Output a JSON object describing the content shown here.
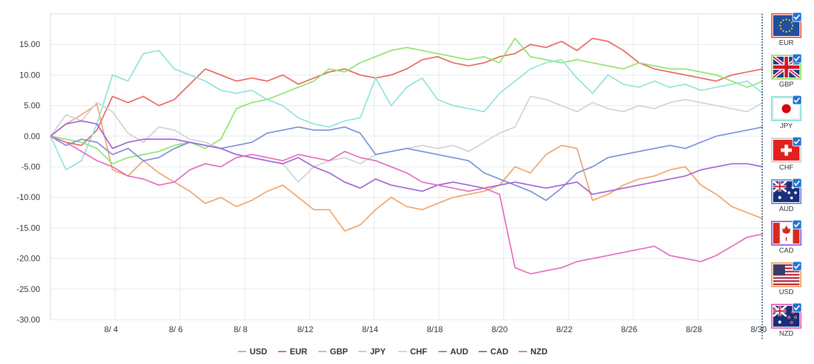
{
  "chart_data": {
    "type": "line",
    "y_ticks": [
      15,
      10,
      5,
      0,
      -5,
      -10,
      -15,
      -20,
      -25,
      -30
    ],
    "y_tick_labels": [
      "15.00",
      "10.00",
      "5.00",
      "0.00",
      "-5.00",
      "-10.00",
      "-15.00",
      "-20.00",
      "-25.00",
      "-30.00"
    ],
    "ylim": [
      -30,
      20
    ],
    "x_tick_labels": [
      "8/ 4",
      "8/ 6",
      "8/ 8",
      "8/12",
      "8/14",
      "8/18",
      "8/20",
      "8/22",
      "8/26",
      "8/28",
      "8/30"
    ],
    "grid": "vertical and horizontal",
    "legend_position": "bottom",
    "series": [
      {
        "name": "USD",
        "color": "#f0a56a",
        "values": [
          0,
          2.0,
          3.5,
          5.2,
          -5.5,
          -6.5,
          -4.0,
          -6.0,
          -7.5,
          -9.0,
          -11.0,
          -10.0,
          -11.5,
          -10.5,
          -9.0,
          -8.0,
          -10.0,
          -12.0,
          -12.0,
          -15.5,
          -14.5,
          -12.0,
          -10.0,
          -11.5,
          -12.0,
          -11.0,
          -10.0,
          -9.5,
          -9.0,
          -8.0,
          -5.0,
          -6.0,
          -3.0,
          -1.5,
          -2.0,
          -10.5,
          -9.5,
          -8.0,
          -7.0,
          -6.5,
          -5.5,
          -5.0,
          -8.0,
          -9.5,
          -11.5,
          -12.5,
          -13.5
        ]
      },
      {
        "name": "EUR",
        "color": "#e8685c",
        "values": [
          0,
          -1.0,
          -1.5,
          1.0,
          6.5,
          5.5,
          6.5,
          5.0,
          6.0,
          8.5,
          11.0,
          10.0,
          9.0,
          9.5,
          9.0,
          10.0,
          8.5,
          9.5,
          10.5,
          11.0,
          10.0,
          9.5,
          10.0,
          11.0,
          12.5,
          13.0,
          12.0,
          11.5,
          12.0,
          13.0,
          13.5,
          15.0,
          14.5,
          15.5,
          14.0,
          16.0,
          15.5,
          14.0,
          12.0,
          11.0,
          10.5,
          10.0,
          9.5,
          9.0,
          10.0,
          10.5,
          11.0
        ]
      },
      {
        "name": "GBP",
        "color": "#8fe46d",
        "values": [
          0,
          -0.5,
          -1.0,
          -2.0,
          -4.5,
          -3.5,
          -3.0,
          -2.5,
          -1.5,
          -1.0,
          -2.0,
          -0.5,
          4.5,
          5.5,
          6.0,
          7.0,
          8.0,
          9.0,
          11.0,
          10.5,
          12.0,
          13.0,
          14.0,
          14.5,
          14.0,
          13.5,
          13.0,
          12.5,
          13.0,
          12.0,
          16.0,
          13.0,
          12.5,
          12.0,
          12.5,
          12.0,
          11.5,
          11.0,
          12.0,
          11.5,
          11.0,
          11.0,
          10.5,
          10.0,
          9.0,
          8.0,
          9.0
        ]
      },
      {
        "name": "JPY",
        "color": "#8fe3db",
        "values": [
          0,
          -5.5,
          -4.0,
          2.0,
          10.0,
          9.0,
          13.5,
          14.0,
          11.0,
          10.0,
          9.0,
          7.5,
          7.0,
          7.5,
          6.0,
          5.0,
          3.0,
          2.0,
          1.5,
          2.5,
          3.0,
          9.5,
          5.0,
          8.0,
          9.5,
          6.0,
          5.0,
          4.5,
          4.0,
          7.0,
          9.0,
          11.0,
          12.0,
          12.5,
          9.5,
          7.0,
          10.0,
          8.5,
          8.0,
          9.0,
          8.0,
          8.5,
          7.5,
          8.0,
          8.5,
          9.0,
          7.0
        ]
      },
      {
        "name": "CHF",
        "color": "#d2d2d2",
        "values": [
          0,
          3.5,
          2.5,
          5.5,
          4.0,
          0.5,
          -1.0,
          1.5,
          1.0,
          -0.5,
          -1.0,
          -2.0,
          -3.0,
          -3.5,
          -4.0,
          -4.5,
          -7.5,
          -5.0,
          -4.0,
          -3.5,
          -4.5,
          -3.0,
          -2.5,
          -2.0,
          -1.5,
          -2.0,
          -1.5,
          -2.5,
          -1.0,
          0.5,
          1.5,
          6.5,
          6.0,
          5.0,
          4.0,
          5.5,
          4.5,
          4.0,
          5.0,
          4.5,
          5.5,
          6.0,
          5.5,
          5.0,
          4.5,
          4.0,
          5.5
        ]
      },
      {
        "name": "AUD",
        "color": "#7b8fd8",
        "values": [
          0,
          -1.5,
          -0.5,
          -1.0,
          -3.0,
          -2.0,
          -4.0,
          -3.5,
          -2.0,
          -1.0,
          -1.5,
          -2.0,
          -1.5,
          -1.0,
          0.5,
          1.0,
          1.5,
          1.0,
          1.0,
          1.5,
          0.5,
          -3.0,
          -2.5,
          -2.0,
          -2.5,
          -3.0,
          -3.5,
          -4.0,
          -6.0,
          -7.0,
          -8.0,
          -9.0,
          -10.5,
          -8.5,
          -6.0,
          -5.0,
          -3.5,
          -3.0,
          -2.5,
          -2.0,
          -1.5,
          -2.0,
          -1.0,
          0.0,
          0.5,
          1.0,
          1.5
        ]
      },
      {
        "name": "CAD",
        "color": "#a065d6",
        "values": [
          0,
          2.0,
          2.5,
          2.0,
          -2.0,
          -1.0,
          -0.5,
          -0.5,
          -0.5,
          -1.0,
          -1.5,
          -2.0,
          -3.0,
          -3.5,
          -4.0,
          -4.5,
          -3.5,
          -5.0,
          -6.0,
          -7.5,
          -8.5,
          -7.0,
          -8.0,
          -8.5,
          -9.0,
          -8.0,
          -7.5,
          -8.0,
          -8.5,
          -8.0,
          -7.5,
          -8.0,
          -8.5,
          -8.0,
          -7.5,
          -9.5,
          -9.0,
          -8.5,
          -8.0,
          -7.5,
          -7.0,
          -6.5,
          -5.5,
          -5.0,
          -4.5,
          -4.5,
          -5.0
        ]
      },
      {
        "name": "NZD",
        "color": "#e46cbc",
        "values": [
          0,
          -1.0,
          -2.5,
          -4.0,
          -5.0,
          -6.5,
          -7.0,
          -8.0,
          -7.5,
          -5.5,
          -4.5,
          -5.0,
          -3.5,
          -3.0,
          -3.5,
          -4.0,
          -3.0,
          -3.5,
          -4.0,
          -2.5,
          -3.5,
          -4.0,
          -5.0,
          -6.0,
          -7.5,
          -8.0,
          -8.5,
          -9.0,
          -8.5,
          -9.5,
          -21.5,
          -22.5,
          -22.0,
          -21.5,
          -20.5,
          -20.0,
          -19.5,
          -19.0,
          -18.5,
          -18.0,
          -19.5,
          -20.0,
          -20.5,
          -19.5,
          -18.0,
          -16.5,
          -16.0
        ]
      }
    ]
  },
  "currency_panel": {
    "items": [
      {
        "label": "EUR",
        "flag": "eu-flag-icon",
        "border": "#e8685c",
        "checked": true
      },
      {
        "label": "GBP",
        "flag": "uk-flag-icon",
        "border": "#8fe46d",
        "checked": true
      },
      {
        "label": "JPY",
        "flag": "japan-flag-icon",
        "border": "#8fe3db",
        "checked": true
      },
      {
        "label": "CHF",
        "flag": "swiss-flag-icon",
        "border": "#d2d2d2",
        "checked": true
      },
      {
        "label": "AUD",
        "flag": "australia-flag-icon",
        "border": "#7b8fd8",
        "checked": true
      },
      {
        "label": "CAD",
        "flag": "canada-flag-icon",
        "border": "#a065d6",
        "checked": true
      },
      {
        "label": "USD",
        "flag": "usa-flag-icon",
        "border": "#f0a56a",
        "checked": true
      },
      {
        "label": "NZD",
        "flag": "nz-flag-icon",
        "border": "#e46cbc",
        "checked": true
      }
    ]
  }
}
